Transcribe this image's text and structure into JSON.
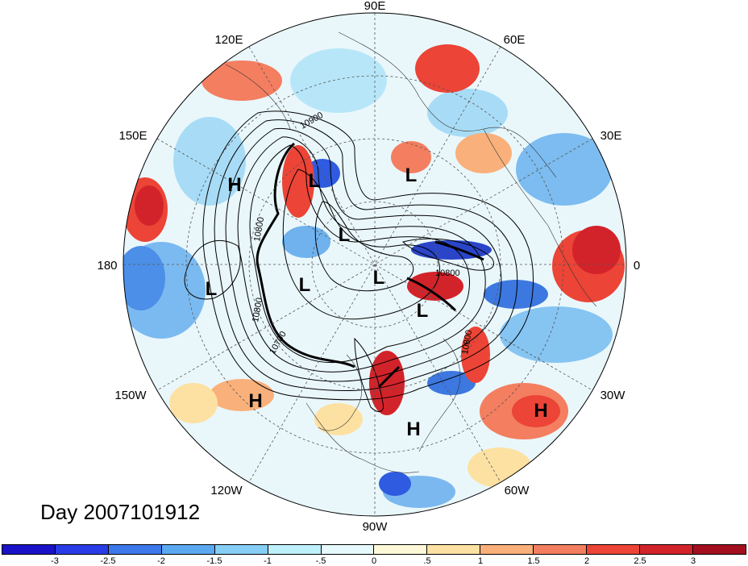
{
  "title": "Day 2007101912",
  "longitude_labels": {
    "lon_90e": "90E",
    "lon_60e": "60E",
    "lon_30e": "30E",
    "lon_0": "0",
    "lon_30w": "30W",
    "lon_60w": "60W",
    "lon_90w": "90W",
    "lon_120w": "120W",
    "lon_150w": "150W",
    "lon_180": "180",
    "lon_150e": "150E",
    "lon_120e": "120E"
  },
  "pressure_centers": [
    {
      "label": "H"
    },
    {
      "label": "L"
    },
    {
      "label": "L"
    },
    {
      "label": "L"
    },
    {
      "label": "L"
    },
    {
      "label": "L"
    },
    {
      "label": "L"
    },
    {
      "label": "L"
    },
    {
      "label": "H"
    },
    {
      "label": "H"
    },
    {
      "label": "H"
    }
  ],
  "contour_labels": {
    "c1": "10900",
    "c2": "10800",
    "c3": "10800",
    "c4": "10700",
    "c5": "10800",
    "c6": "10800"
  },
  "colorbar": {
    "colors": [
      "#1a12c8",
      "#2a3ce6",
      "#3c78ea",
      "#5aa8f0",
      "#86cef5",
      "#bdf0fb",
      "#e6f9fc",
      "#fdf8d8",
      "#fde1a2",
      "#f9b07a",
      "#f47e60",
      "#ec4436",
      "#d3232a",
      "#a30f1f"
    ],
    "ticks": [
      "-3",
      "-2.5",
      "-2",
      "-1.5",
      "-1",
      "-.5",
      "0",
      ".5",
      "1",
      "1.5",
      "2",
      "2.5",
      "3"
    ]
  }
}
